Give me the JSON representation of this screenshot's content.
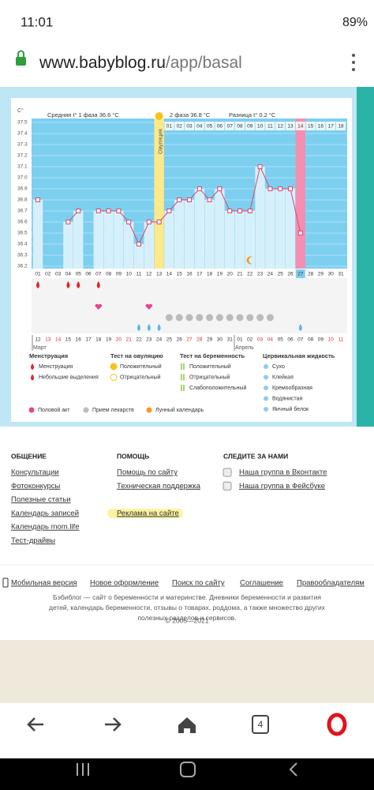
{
  "status": {
    "time": "11:01",
    "battery": "89%"
  },
  "url": {
    "host": "www.babyblog.ru",
    "path": "/app/basal"
  },
  "chart_data": {
    "type": "line",
    "y_unit": "C°",
    "header": {
      "phase1": "Средняя t° 1 фаза 36.6 °C",
      "phase2": "2 фаза 36.8 °C",
      "diff": "Разница t° 0.2 °C",
      "ovulation": "Овуляция"
    },
    "categories": [
      "01",
      "02",
      "03",
      "04",
      "05",
      "06",
      "07",
      "08",
      "09",
      "10",
      "11",
      "12",
      "13",
      "14",
      "15",
      "16",
      "17",
      "18",
      "19",
      "20",
      "21",
      "22",
      "23",
      "24",
      "25",
      "26",
      "27",
      "28",
      "29",
      "30",
      "31"
    ],
    "values": [
      36.8,
      null,
      null,
      36.6,
      36.7,
      null,
      36.7,
      36.7,
      36.7,
      36.6,
      36.4,
      36.6,
      36.6,
      36.7,
      36.8,
      36.8,
      36.9,
      36.8,
      36.9,
      36.7,
      36.7,
      36.7,
      37.1,
      36.9,
      36.9,
      36.9,
      36.5,
      null,
      null,
      null,
      null
    ],
    "color": "#d9466e",
    "ylim": [
      36.2,
      37.5
    ],
    "yticks": [
      37.5,
      37.4,
      37.3,
      37.2,
      37.1,
      {
        "value": 37,
        "label": "37.0"
      },
      36.9,
      36.8,
      36.7,
      36.6,
      36.5,
      36.4,
      36.3,
      36.2
    ],
    "ovulation_day": 13,
    "marked_day": 27,
    "today": 27,
    "phase2_start": 14,
    "phase2_labels": [
      "01",
      "02",
      "03",
      "04",
      "05",
      "06",
      "07",
      "08",
      "09",
      "10",
      "11",
      "12",
      "13",
      "14",
      "15",
      "16",
      "17",
      "18"
    ],
    "dates": [
      "12",
      "13",
      "14",
      "15",
      "16",
      "17",
      "18",
      "19",
      "20",
      "21",
      "22",
      "23",
      "24",
      "25",
      "26",
      "27",
      "28",
      "29",
      "30",
      "31",
      "01",
      "02",
      "03",
      "04",
      "05",
      "06",
      "07",
      "08",
      "09",
      "10",
      "11"
    ],
    "weekend_days": [
      2,
      3,
      9,
      10,
      16,
      17,
      23,
      24,
      30,
      31
    ],
    "months": [
      {
        "day": 1,
        "label": "Март"
      },
      {
        "day": 21,
        "label": "Апрель"
      }
    ],
    "events": {
      "menstruation": [
        1,
        4,
        5,
        7
      ],
      "sex": [
        7,
        12
      ],
      "fluid": [
        11,
        12,
        13,
        27
      ],
      "pills": [
        14,
        15,
        16,
        17,
        18,
        19,
        20,
        21,
        22,
        23,
        24
      ],
      "moon": [
        22
      ]
    }
  },
  "legend": {
    "menstruation": {
      "title": "Менструация",
      "items": [
        "Менструация",
        "Небольшие выделения"
      ]
    },
    "ovulation": {
      "title": "Тест на овуляцию",
      "items": [
        "Положительный",
        "Отрицательный"
      ]
    },
    "pregnancy": {
      "title": "Тест на беременность",
      "items": [
        "Положительный",
        "Отрицательный",
        "Слабоположительный"
      ]
    },
    "fluid": {
      "title": "Цервикальная жидкость",
      "items": [
        "Сухо",
        "Клейкая",
        "Кремообразная",
        "Водянистая",
        "Яичный белок"
      ]
    },
    "other": [
      "Половой акт",
      "Прием лекарств",
      "Лунный календарь"
    ]
  },
  "footer": {
    "cols": [
      {
        "title": "ОБЩЕНИЕ",
        "links": [
          "Консультации",
          "Фотоконкурсы",
          "Полезные статьи",
          "Календарь записей",
          "Календарь mom.life",
          "Тест-драйвы"
        ]
      },
      {
        "title": "ПОМОЩЬ",
        "links": [
          "Помощь по сайту",
          "Техническая поддержка",
          "",
          "Реклама на сайте"
        ]
      },
      {
        "title": "СЛЕДИТЕ ЗА НАМИ",
        "links": [
          "Наша группа в Вконтакте",
          "Наша группа в Фейсбуке"
        ]
      }
    ],
    "bottom": [
      "Мобильная версия",
      "Новое оформление",
      "Поиск по сайту",
      "Соглашение",
      "Правообладателям"
    ],
    "about": "Бэбиблог — сайт о беременности и материнстве. Дневники беременности и развития детей, календарь беременности, отзывы о товарах, роддома, а также множество других полезных разделов и сервисов.",
    "copyright": "© 2005—2021"
  },
  "tabs": "4"
}
